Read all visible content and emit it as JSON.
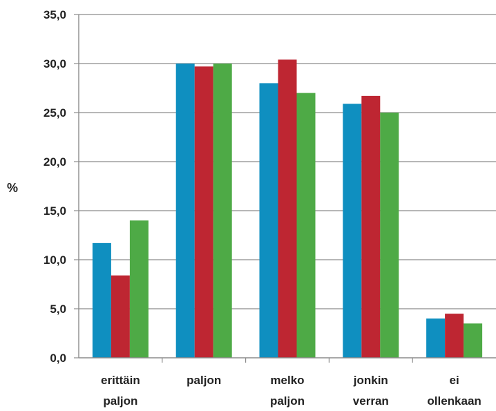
{
  "chart_data": {
    "type": "bar",
    "title": "",
    "xlabel": "",
    "ylabel": "%",
    "ylim": [
      0,
      35
    ],
    "ytick_step": 5,
    "ytick_labels": [
      "0,0",
      "5,0",
      "10,0",
      "15,0",
      "20,0",
      "25,0",
      "30,0",
      "35,0"
    ],
    "grid": true,
    "legend": "none",
    "categories": [
      [
        "erittäin",
        "paljon"
      ],
      [
        "paljon"
      ],
      [
        "melko",
        "paljon"
      ],
      [
        "jonkin",
        "verran"
      ],
      [
        "ei",
        "ollenkaan"
      ]
    ],
    "series": [
      {
        "color": "#0f8fc0",
        "values": [
          11.7,
          30.0,
          28.0,
          25.9,
          4.0
        ]
      },
      {
        "color": "#be2632",
        "values": [
          8.4,
          29.7,
          30.4,
          26.7,
          4.5
        ]
      },
      {
        "color": "#4eaa46",
        "values": [
          14.0,
          30.0,
          27.0,
          25.0,
          3.5
        ]
      }
    ]
  }
}
